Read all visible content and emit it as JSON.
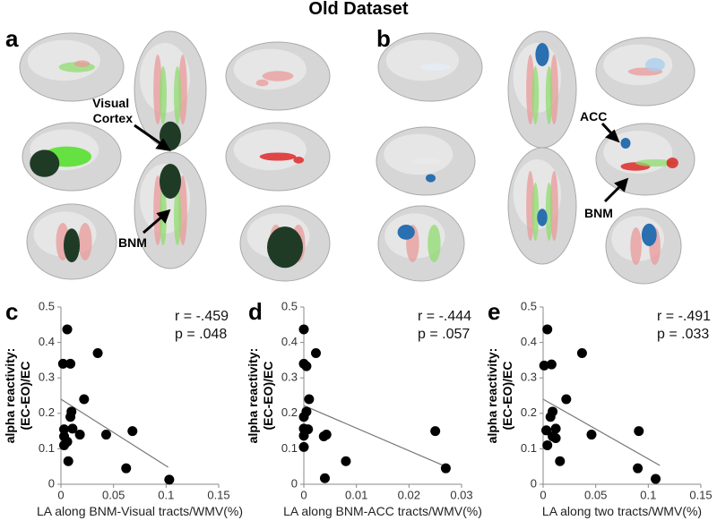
{
  "title": "Old Dataset",
  "figure_panels": [
    {
      "label": "a",
      "annotations": [
        "Visual Cortex",
        "BNM"
      ]
    },
    {
      "label": "b",
      "annotations": [
        "ACC",
        "BNM"
      ]
    }
  ],
  "chart_data": [
    {
      "type": "scatter",
      "panel": "c",
      "ylabel": [
        "alpha reactivity:",
        "(EC-EO)/EC"
      ],
      "xlabel": "LA along BNM-Visual tracts/WMV(%)",
      "annotations": [
        "r = -.459",
        "p = .048"
      ],
      "color": "#000000",
      "x": [
        0.002,
        0.006,
        0.009,
        0.035,
        0.022,
        0.01,
        0.009,
        0.011,
        0.003,
        0.003,
        0.003,
        0.007,
        0.018,
        0.043,
        0.068,
        0.062,
        0.103,
        0.006
      ],
      "y": [
        0.34,
        0.437,
        0.34,
        0.37,
        0.24,
        0.205,
        0.19,
        0.157,
        0.155,
        0.135,
        0.11,
        0.065,
        0.14,
        0.14,
        0.15,
        0.045,
        0.013,
        0.12
      ],
      "fit_x": [
        0,
        0.102
      ],
      "fit_y": [
        0.24,
        0.048
      ],
      "xlim": [
        0,
        0.15
      ],
      "xticks": [
        0,
        0.05,
        0.1,
        0.15
      ],
      "ylim": [
        0,
        0.5
      ],
      "yticks": [
        0,
        0.1,
        0.2,
        0.3,
        0.4,
        0.5
      ]
    },
    {
      "type": "scatter",
      "panel": "d",
      "ylabel": [
        "alpha reactivity:",
        "(EC-EO)/EC"
      ],
      "xlabel": "LA along BNM-ACC tracts/WMV(%)",
      "annotations": [
        "r = -.444",
        "p = .057"
      ],
      "color": "#000000",
      "x": [
        0,
        0,
        0.0005,
        0.0023,
        0.001,
        0.0005,
        0,
        0,
        0.0008,
        0,
        0.0043,
        0.0038,
        0.008,
        0.004,
        0.025,
        0.027,
        0
      ],
      "y": [
        0.437,
        0.34,
        0.333,
        0.37,
        0.24,
        0.205,
        0.19,
        0.157,
        0.155,
        0.105,
        0.14,
        0.135,
        0.065,
        0.017,
        0.15,
        0.045,
        0.137
      ],
      "fit_x": [
        0,
        0.027
      ],
      "fit_y": [
        0.222,
        0.05
      ],
      "xlim": [
        0,
        0.03
      ],
      "xticks": [
        0,
        0.01,
        0.02,
        0.03
      ],
      "ylim": [
        0,
        0.5
      ],
      "yticks": [
        0,
        0.1,
        0.2,
        0.3,
        0.4,
        0.5
      ]
    },
    {
      "type": "scatter",
      "panel": "e",
      "ylabel": [
        "alpha reactivity:",
        "(EC-EO)/EC"
      ],
      "xlabel": "LA along two tracts/WMV(%)",
      "annotations": [
        "r = -.491",
        "p = .033"
      ],
      "color": "#000000",
      "x": [
        0.004,
        0.001,
        0.008,
        0.037,
        0.022,
        0.009,
        0.007,
        0.012,
        0.003,
        0.009,
        0.004,
        0.016,
        0.046,
        0.091,
        0.09,
        0.107,
        0.012
      ],
      "y": [
        0.437,
        0.335,
        0.338,
        0.37,
        0.24,
        0.205,
        0.19,
        0.157,
        0.152,
        0.135,
        0.11,
        0.065,
        0.14,
        0.15,
        0.045,
        0.015,
        0.13
      ],
      "fit_x": [
        0,
        0.111
      ],
      "fit_y": [
        0.24,
        0.053
      ],
      "xlim": [
        0,
        0.15
      ],
      "xticks": [
        0,
        0.05,
        0.1,
        0.15
      ],
      "ylim": [
        0,
        0.5
      ],
      "yticks": [
        0,
        0.1,
        0.2,
        0.3,
        0.4,
        0.5
      ]
    }
  ]
}
